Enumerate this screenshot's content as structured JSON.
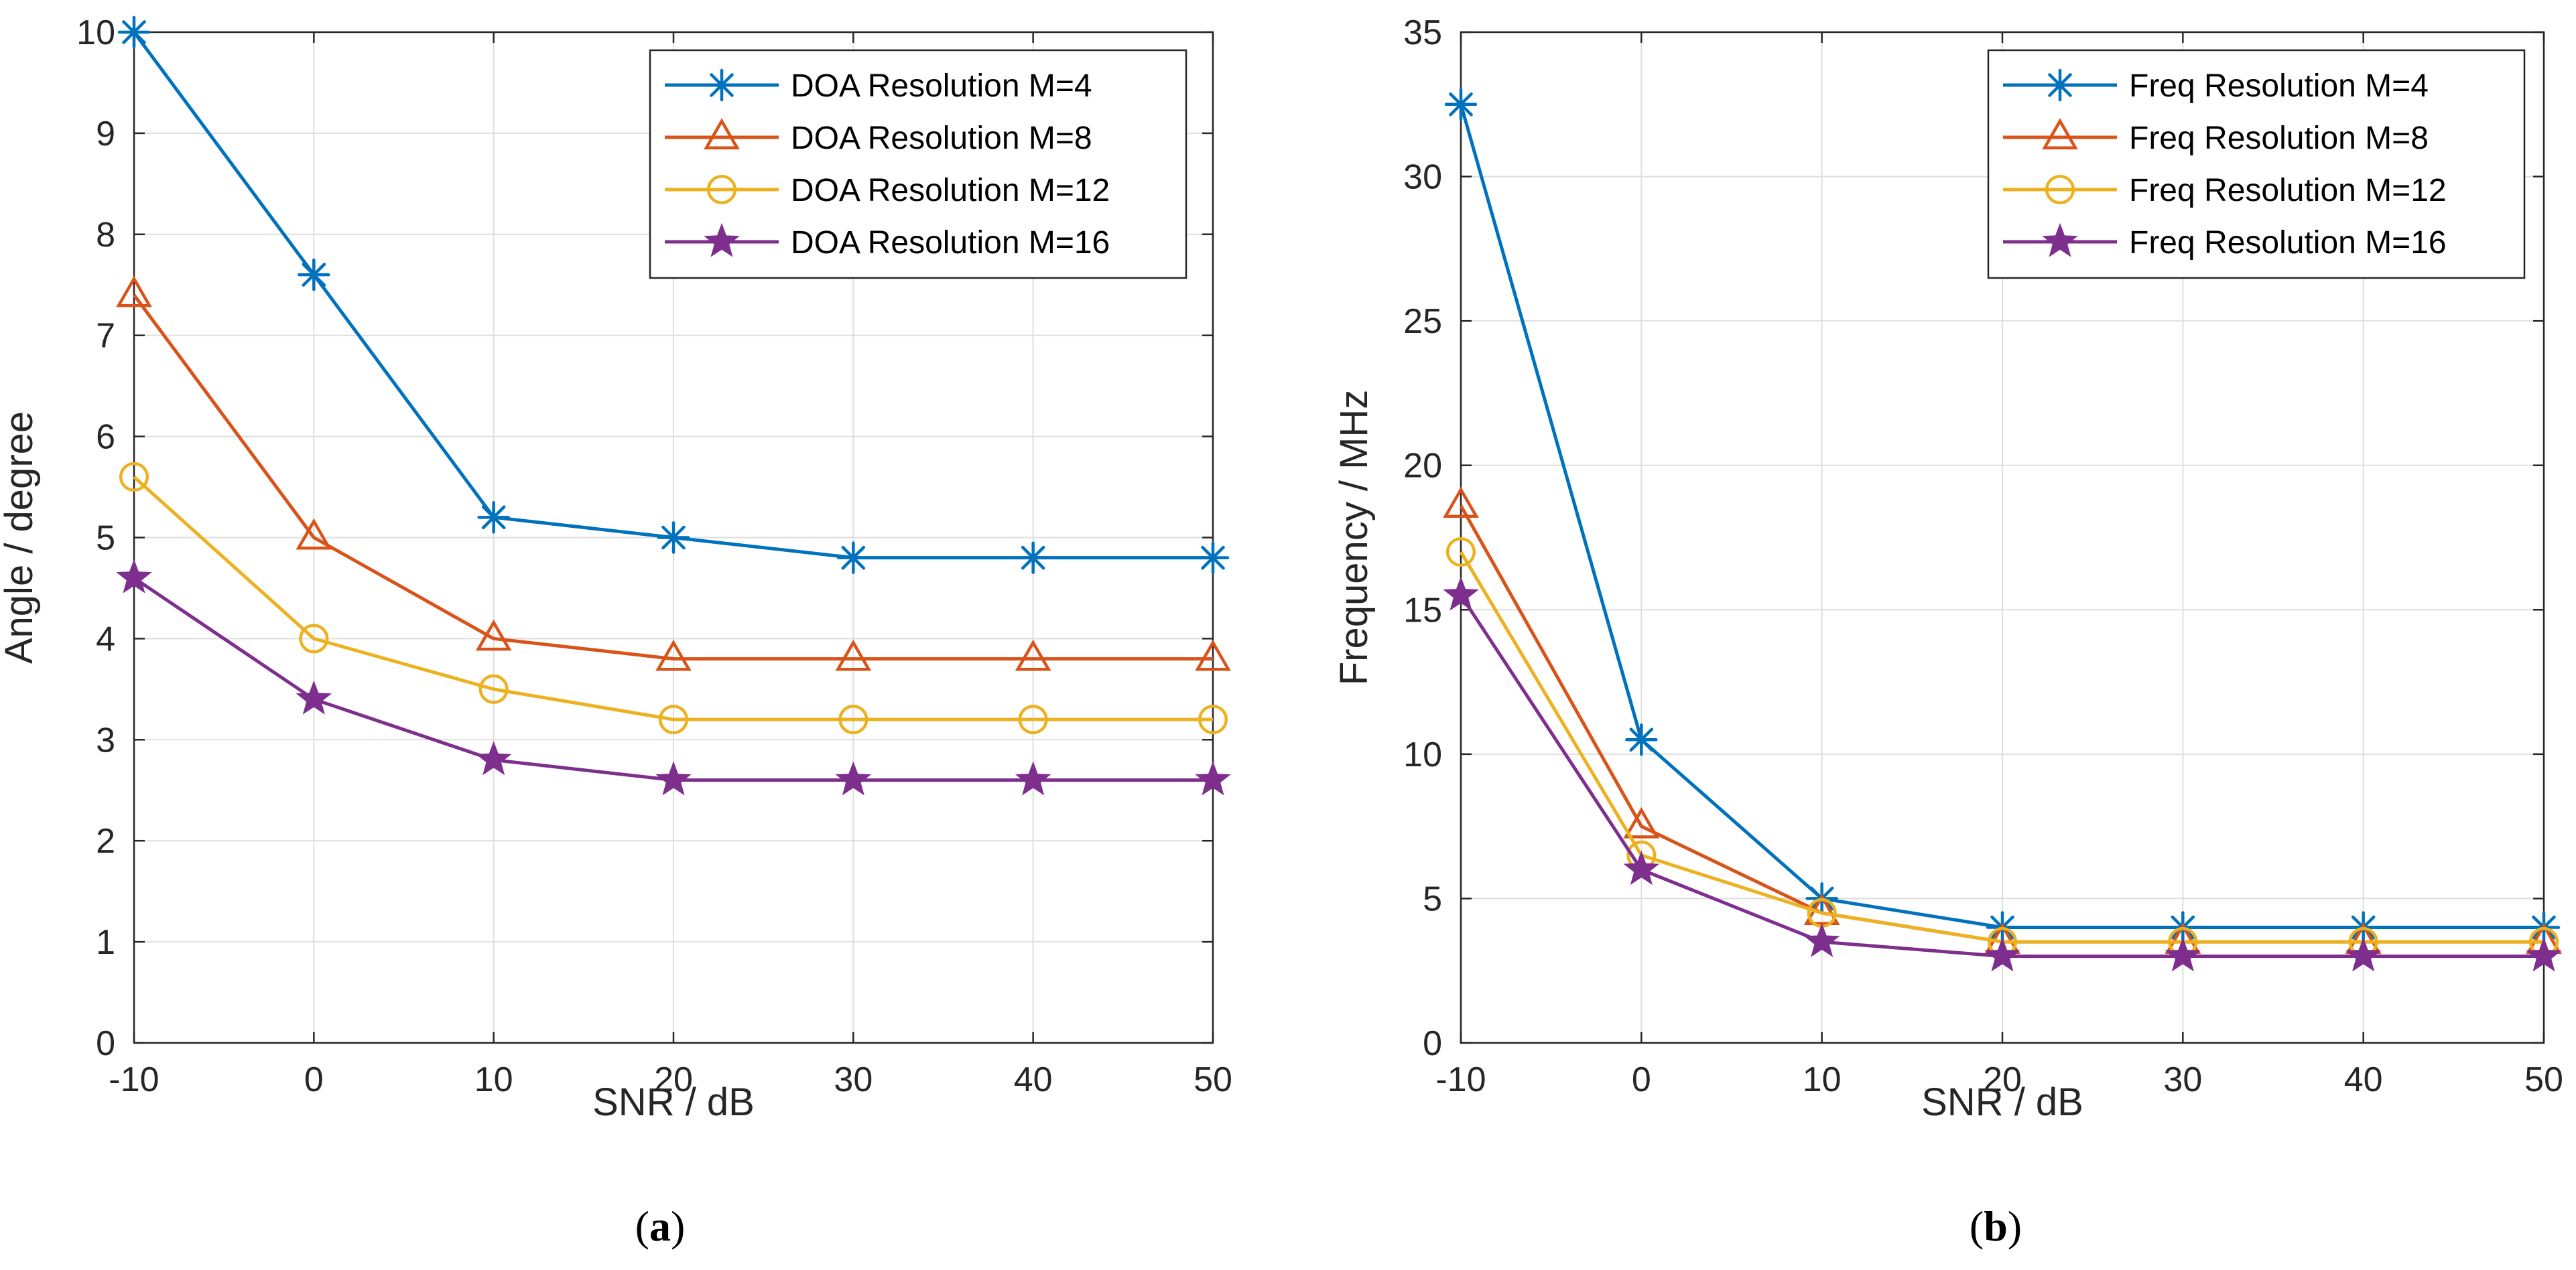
{
  "chart_data": [
    {
      "type": "line",
      "caption_open": "(",
      "caption_letter": "a",
      "caption_close": ")",
      "title": "",
      "xlabel": "SNR / dB",
      "ylabel": "Angle / degree",
      "x": [
        -10,
        0,
        10,
        20,
        30,
        40,
        50
      ],
      "xlim": [
        -10,
        50
      ],
      "ylim": [
        0,
        10
      ],
      "xticks": [
        "-10",
        "0",
        "10",
        "20",
        "30",
        "40",
        "50"
      ],
      "yticks": [
        "0",
        "1",
        "2",
        "3",
        "4",
        "5",
        "6",
        "7",
        "8",
        "9",
        "10"
      ],
      "grid": true,
      "legend_position": "top-right",
      "series": [
        {
          "name": "DOA Resolution M=4",
          "color": "#0072BD",
          "marker": "asterisk",
          "values": [
            10,
            7.6,
            5.2,
            5.0,
            4.8,
            4.8,
            4.8
          ]
        },
        {
          "name": "DOA Resolution M=8",
          "color": "#D95319",
          "marker": "triangle",
          "values": [
            7.4,
            5.0,
            4.0,
            3.8,
            3.8,
            3.8,
            3.8
          ]
        },
        {
          "name": "DOA Resolution M=12",
          "color": "#EDB120",
          "marker": "circle",
          "values": [
            5.6,
            4.0,
            3.5,
            3.2,
            3.2,
            3.2,
            3.2
          ]
        },
        {
          "name": "DOA Resolution M=16",
          "color": "#7E2F8E",
          "marker": "star",
          "values": [
            4.6,
            3.4,
            2.8,
            2.6,
            2.6,
            2.6,
            2.6
          ]
        }
      ]
    },
    {
      "type": "line",
      "caption_open": "(",
      "caption_letter": "b",
      "caption_close": ")",
      "title": "",
      "xlabel": "SNR / dB",
      "ylabel": "Frequency / MHz",
      "x": [
        -10,
        0,
        10,
        20,
        30,
        40,
        50
      ],
      "xlim": [
        -10,
        50
      ],
      "ylim": [
        0,
        35
      ],
      "xticks": [
        "-10",
        "0",
        "10",
        "20",
        "30",
        "40",
        "50"
      ],
      "yticks": [
        "0",
        "5",
        "10",
        "15",
        "20",
        "25",
        "30",
        "35"
      ],
      "grid": true,
      "legend_position": "top-right",
      "series": [
        {
          "name": "Freq Resolution M=4",
          "color": "#0072BD",
          "marker": "asterisk",
          "values": [
            32.5,
            10.5,
            5.0,
            4.0,
            4.0,
            4.0,
            4.0
          ]
        },
        {
          "name": "Freq Resolution M=8",
          "color": "#D95319",
          "marker": "triangle",
          "values": [
            18.6,
            7.5,
            4.5,
            3.5,
            3.5,
            3.5,
            3.5
          ]
        },
        {
          "name": "Freq Resolution M=12",
          "color": "#EDB120",
          "marker": "circle",
          "values": [
            17.0,
            6.5,
            4.5,
            3.5,
            3.5,
            3.5,
            3.5
          ]
        },
        {
          "name": "Freq Resolution M=16",
          "color": "#7E2F8E",
          "marker": "star",
          "values": [
            15.5,
            6.0,
            3.5,
            3.0,
            3.0,
            3.0,
            3.0
          ]
        }
      ]
    }
  ]
}
